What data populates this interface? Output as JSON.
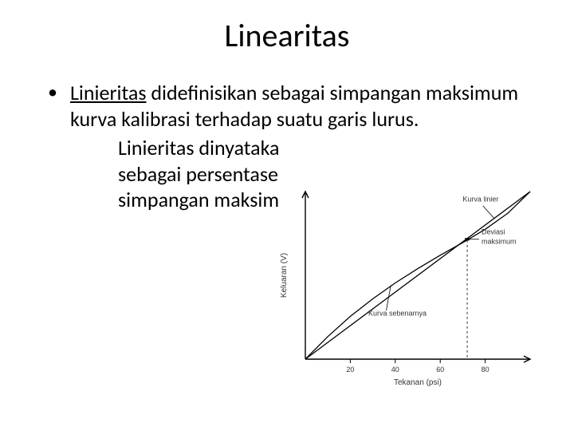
{
  "title": "Linearitas",
  "bullet": {
    "term": "Linieritas",
    "rest": " didefinisikan sebagai simpangan maksimum kurva kalibrasi terhadap suatu garis lurus."
  },
  "sub_lines": [
    "Linieritas dinyataka",
    "sebagai persentase",
    "simpangan maksim"
  ],
  "chart": {
    "type": "line",
    "background": "#ffffff",
    "axis_color": "#000000",
    "curve_color": "#000000",
    "line_color": "#000000",
    "text_color": "#333333",
    "label_fontsize": 10,
    "tick_fontsize": 9,
    "xlabel": "Tekanan (psi)",
    "ylabel": "Keluaran (V)",
    "x_ticks": [
      20,
      40,
      60,
      80
    ],
    "x_range": [
      0,
      100
    ],
    "y_range": [
      0,
      10
    ],
    "linear_line": {
      "x1": 0,
      "y1": 0,
      "x2": 100,
      "y2": 10
    },
    "curve_points": [
      {
        "x": 0,
        "y": 0.0
      },
      {
        "x": 10,
        "y": 1.35
      },
      {
        "x": 20,
        "y": 2.55
      },
      {
        "x": 30,
        "y": 3.6
      },
      {
        "x": 40,
        "y": 4.55
      },
      {
        "x": 50,
        "y": 5.4
      },
      {
        "x": 60,
        "y": 6.2
      },
      {
        "x": 70,
        "y": 6.95
      },
      {
        "x": 80,
        "y": 7.75
      },
      {
        "x": 90,
        "y": 8.7
      },
      {
        "x": 100,
        "y": 10.0
      }
    ],
    "deviation_marker_x": 72,
    "curve_label": "Kurva sebenarnya",
    "linear_label": "Kurva linier",
    "deviation_label": "Deviasi maksimum"
  }
}
